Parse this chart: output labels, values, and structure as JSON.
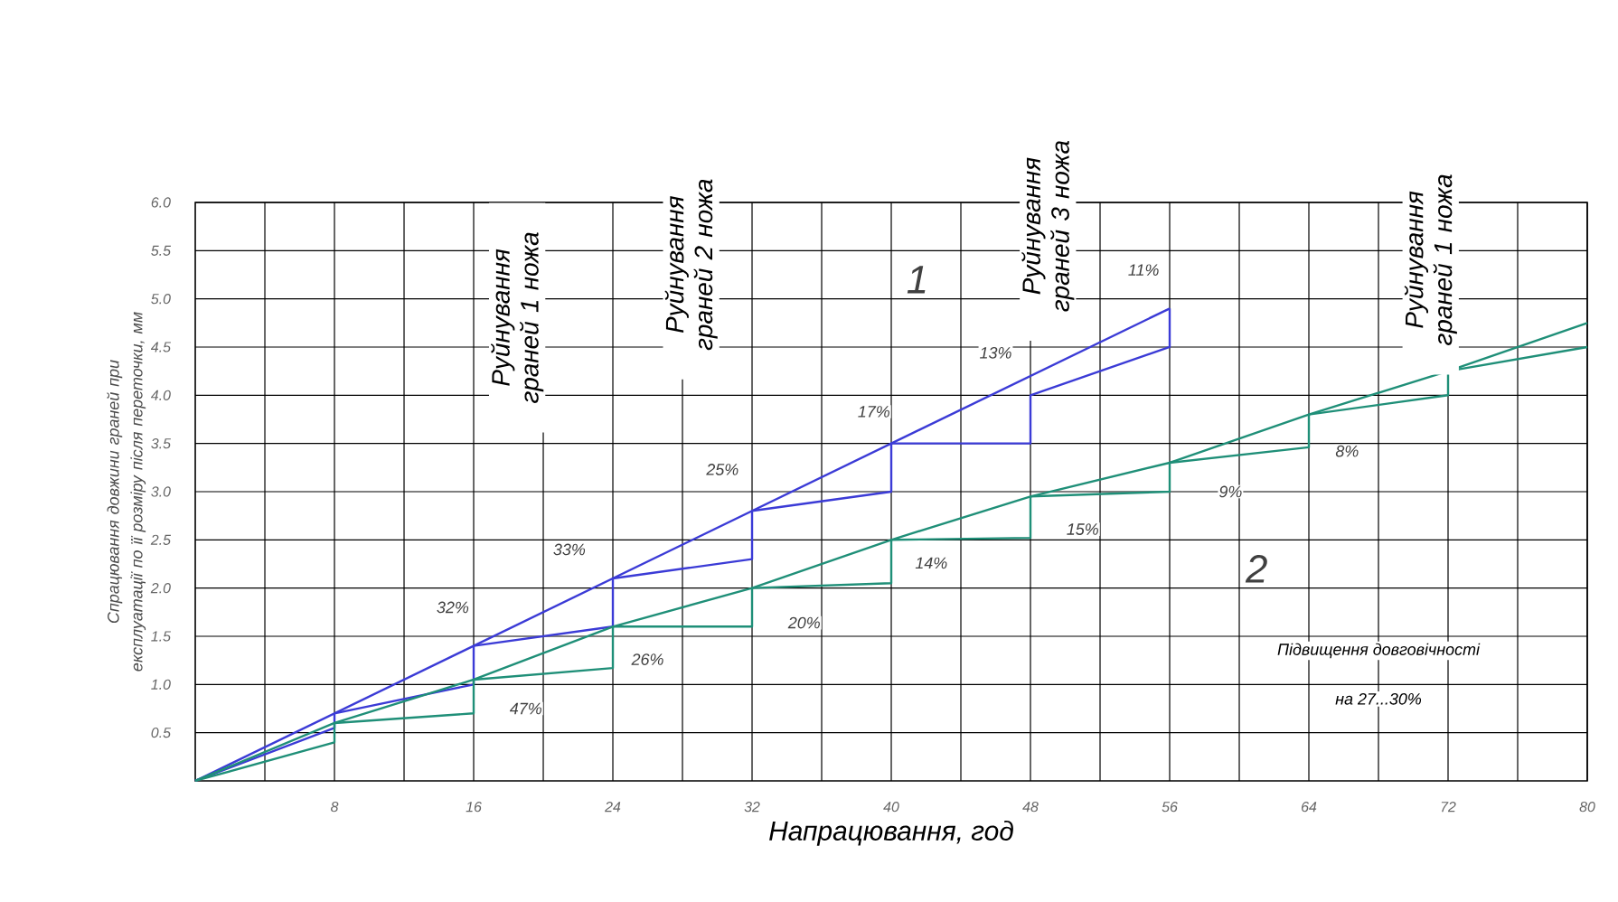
{
  "chart_data": {
    "type": "line",
    "xlabel": "Напрацювання, год",
    "ylabel": "Спрацювання довжини граней при експлуатації по її розміру після переточки, мм",
    "xlim": [
      0,
      80
    ],
    "ylim": [
      0,
      6
    ],
    "xticks": [
      {
        "value": 4,
        "label": null
      },
      8,
      {
        "value": 12,
        "label": null
      },
      16,
      {
        "value": 20,
        "label": null
      },
      24,
      {
        "value": 28,
        "label": null
      },
      32,
      {
        "value": 36,
        "label": null
      },
      40,
      {
        "value": 44,
        "label": null
      },
      48,
      {
        "value": 52,
        "label": null
      },
      56,
      {
        "value": 60,
        "label": null
      },
      64,
      {
        "value": 68,
        "label": null
      },
      72,
      {
        "value": 76,
        "label": null
      },
      80
    ],
    "yticks": [
      {
        "value": 0.5,
        "label": "0.5"
      },
      {
        "value": 1,
        "label": "1.0"
      },
      {
        "value": 1.5,
        "label": "1.5"
      },
      {
        "value": 2,
        "label": "2.0"
      },
      {
        "value": 2.5,
        "label": "2.5"
      },
      {
        "value": 3,
        "label": "3.0"
      },
      {
        "value": 3.5,
        "label": "3.5"
      },
      {
        "value": 4,
        "label": "4.0"
      },
      {
        "value": 4.5,
        "label": "4.5"
      },
      {
        "value": 5,
        "label": "5.0"
      },
      {
        "value": 5.5,
        "label": "5.5"
      },
      {
        "value": 6,
        "label": "6.0"
      }
    ],
    "grid": true,
    "marker": "none",
    "line_style": "solid",
    "series": [
      {
        "color": "#3b3bd6",
        "x": [
          0,
          56
        ],
        "values": [
          0,
          4.9
        ]
      },
      {
        "color": "#3b3bd6",
        "x": [
          0,
          8,
          8,
          16,
          16,
          24,
          24,
          32,
          32,
          40,
          40,
          48,
          48,
          56,
          56
        ],
        "values": [
          0,
          0.55,
          0.7,
          1.0,
          1.4,
          1.6,
          2.1,
          2.3,
          2.8,
          3.0,
          3.5,
          3.5,
          4.0,
          4.5,
          4.9
        ]
      },
      {
        "color": "#1f8f78",
        "x": [
          0,
          8,
          16,
          24,
          32,
          40,
          48,
          56,
          64,
          72,
          80
        ],
        "values": [
          0,
          0.6,
          1.05,
          1.6,
          2.0,
          2.5,
          2.95,
          3.3,
          3.8,
          4.25,
          4.75
        ]
      },
      {
        "color": "#1f8f78",
        "x": [
          0,
          8,
          8,
          16,
          16,
          24,
          24,
          32,
          32,
          40,
          40,
          48,
          48,
          56,
          56,
          64,
          64,
          72,
          72,
          80
        ],
        "values": [
          0,
          0.4,
          0.6,
          0.7,
          1.05,
          1.17,
          1.6,
          1.6,
          2.0,
          2.05,
          2.5,
          2.52,
          2.95,
          3.0,
          3.3,
          3.46,
          3.8,
          4.0,
          4.25,
          4.5
        ]
      }
    ],
    "annotations": [
      "Руйнування граней 1 ножа",
      "Руйнування граней 2 ножа",
      "Руйнування граней 3 ножа",
      "Руйнування граней 1 ножа",
      "Підвищення довговічності",
      "на 27...30%",
      "47%",
      "32%",
      "26%",
      "33%",
      "20%",
      "25%",
      "14%",
      "17%",
      "15%",
      "13%",
      "11%",
      "9%",
      "8%",
      "1",
      "2"
    ]
  }
}
